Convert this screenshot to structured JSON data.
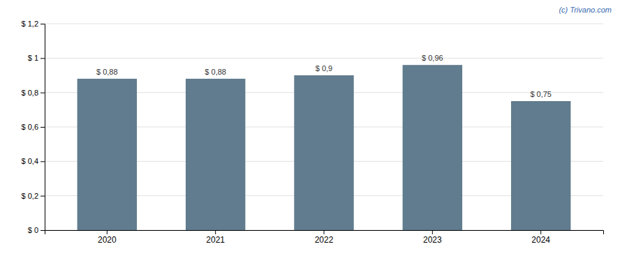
{
  "chart_data": {
    "type": "bar",
    "categories": [
      "2020",
      "2021",
      "2022",
      "2023",
      "2024"
    ],
    "values": [
      0.88,
      0.88,
      0.9,
      0.96,
      0.75
    ],
    "value_labels": [
      "$ 0,88",
      "$ 0,88",
      "$ 0,9",
      "$ 0,96",
      "$ 0,75"
    ],
    "color": "#607c8e",
    "ylim": [
      0,
      1.2
    ],
    "yticks": [
      {
        "value": 0,
        "label": "$ 0"
      },
      {
        "value": 0.2,
        "label": "$ 0,2"
      },
      {
        "value": 0.4,
        "label": "$ 0,4"
      },
      {
        "value": 0.6,
        "label": "$ 0,6"
      },
      {
        "value": 0.8,
        "label": "$ 0,8"
      },
      {
        "value": 1.0,
        "label": "$ 1"
      },
      {
        "value": 1.2,
        "label": "$ 1,2"
      }
    ],
    "grid": true,
    "annotations": [
      {
        "text": "(c) Trivano.com",
        "color": "#3a6ab0"
      }
    ]
  }
}
